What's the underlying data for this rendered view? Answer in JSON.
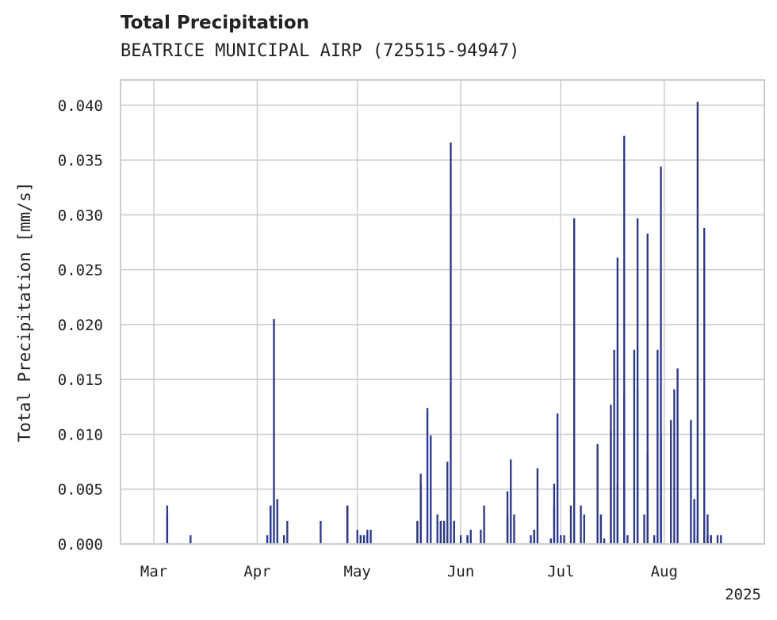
{
  "chart_data": {
    "type": "bar",
    "title": "Total Precipitation",
    "subtitle": "BEATRICE MUNICIPAL AIRP (725515-94947)",
    "ylabel": "Total Precipitation [mm/s]",
    "xlabel": "",
    "year_label": "2025",
    "ylim": [
      0,
      0.0423
    ],
    "xlim": [
      "2025-02-19",
      "2025-08-31"
    ],
    "grid": true,
    "bar_color": "#27359a",
    "y_ticks": [
      "0.000",
      "0.005",
      "0.010",
      "0.015",
      "0.020",
      "0.025",
      "0.030",
      "0.035",
      "0.040"
    ],
    "x_ticks": [
      {
        "label": "Mar",
        "date": "2025-03-01"
      },
      {
        "label": "Apr",
        "date": "2025-04-01"
      },
      {
        "label": "May",
        "date": "2025-05-01"
      },
      {
        "label": "Jun",
        "date": "2025-06-01"
      },
      {
        "label": "Jul",
        "date": "2025-07-01"
      },
      {
        "label": "Aug",
        "date": "2025-08-01"
      }
    ],
    "x": [
      "2025-03-05",
      "2025-03-05",
      "2025-03-12",
      "2025-04-04",
      "2025-04-05",
      "2025-04-05",
      "2025-04-06",
      "2025-04-07",
      "2025-04-09",
      "2025-04-10",
      "2025-04-20",
      "2025-04-28",
      "2025-04-28",
      "2025-04-28",
      "2025-05-01",
      "2025-05-02",
      "2025-05-02",
      "2025-05-03",
      "2025-05-04",
      "2025-05-04",
      "2025-05-05",
      "2025-05-19",
      "2025-05-19",
      "2025-05-20",
      "2025-05-20",
      "2025-05-22",
      "2025-05-23",
      "2025-05-25",
      "2025-05-26",
      "2025-05-26",
      "2025-05-27",
      "2025-05-27",
      "2025-05-28",
      "2025-05-28",
      "2025-05-29",
      "2025-05-30",
      "2025-05-30",
      "2025-06-01",
      "2025-06-03",
      "2025-06-03",
      "2025-06-04",
      "2025-06-07",
      "2025-06-08",
      "2025-06-15",
      "2025-06-15",
      "2025-06-16",
      "2025-06-17",
      "2025-06-22",
      "2025-06-23",
      "2025-06-23",
      "2025-06-24",
      "2025-06-28",
      "2025-06-28",
      "2025-06-29",
      "2025-06-29",
      "2025-06-30",
      "2025-07-01",
      "2025-07-02",
      "2025-07-04",
      "2025-07-05",
      "2025-07-07",
      "2025-07-08",
      "2025-07-12",
      "2025-07-13",
      "2025-07-14",
      "2025-07-16",
      "2025-07-16",
      "2025-07-17",
      "2025-07-18",
      "2025-07-18",
      "2025-07-20",
      "2025-07-20",
      "2025-07-21",
      "2025-07-23",
      "2025-07-24",
      "2025-07-24",
      "2025-07-26",
      "2025-07-27",
      "2025-07-27",
      "2025-07-29",
      "2025-07-30",
      "2025-07-31",
      "2025-07-31",
      "2025-08-03",
      "2025-08-04",
      "2025-08-05",
      "2025-08-09",
      "2025-08-10",
      "2025-08-10",
      "2025-08-11",
      "2025-08-11",
      "2025-08-13",
      "2025-08-13",
      "2025-08-14",
      "2025-08-14",
      "2025-08-15",
      "2025-08-15",
      "2025-08-17",
      "2025-08-18"
    ],
    "values": [
      0.0027,
      0.0035,
      0.0008,
      0.0008,
      0.0035,
      0.0035,
      0.0205,
      0.0041,
      0.0008,
      0.0021,
      0.0021,
      0.0035,
      0.0035,
      0.0035,
      0.0013,
      0.0008,
      0.0008,
      0.0008,
      0.0013,
      0.0008,
      0.0013,
      0.0021,
      0.0021,
      0.0055,
      0.0064,
      0.0124,
      0.0099,
      0.0027,
      0.0021,
      0.0021,
      0.0021,
      0.0021,
      0.0008,
      0.0075,
      0.0366,
      0.0021,
      0.0021,
      0.0008,
      0.0008,
      0.0008,
      0.0013,
      0.0013,
      0.0035,
      0.0027,
      0.0048,
      0.0077,
      0.0027,
      0.0008,
      0.0013,
      0.0013,
      0.0069,
      0.0005,
      0.0005,
      0.0035,
      0.0055,
      0.0119,
      0.0008,
      0.0008,
      0.0035,
      0.0297,
      0.0035,
      0.0027,
      0.0091,
      0.0027,
      0.0005,
      0.0127,
      0.0104,
      0.0177,
      0.0261,
      0.0055,
      0.0372,
      0.0133,
      0.0008,
      0.0177,
      0.0297,
      0.0141,
      0.0027,
      0.0283,
      0.0083,
      0.0008,
      0.0177,
      0.0344,
      0.0099,
      0.0113,
      0.0141,
      0.016,
      0.0113,
      0.0021,
      0.0041,
      0.0008,
      0.0403,
      0.0021,
      0.0288,
      0.0027,
      0.0008,
      0.0008,
      0.0008,
      0.0008,
      0.0008
    ]
  }
}
